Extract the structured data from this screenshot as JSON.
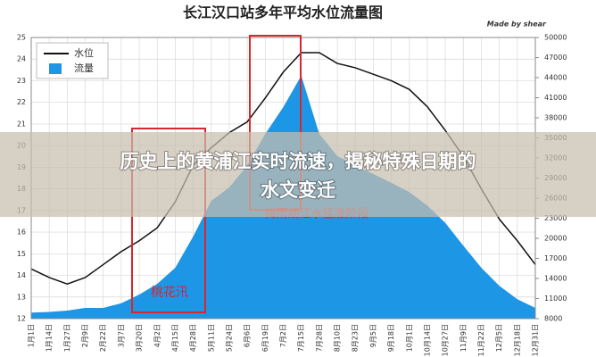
{
  "chart_data": {
    "type": "area-line",
    "title": "长江汉口站多年平均水位流量图",
    "credit": "Made by shear",
    "categories": [
      "1月1日",
      "1月14日",
      "1月27日",
      "2月9日",
      "2月22日",
      "3月7日",
      "3月20日",
      "4月2日",
      "4月15日",
      "4月28日",
      "5月11日",
      "5月24日",
      "6月6日",
      "6月19日",
      "7月2日",
      "7月15日",
      "7月28日",
      "8月10日",
      "8月23日",
      "9月5日",
      "9月18日",
      "10月1日",
      "10月14日",
      "10月27日",
      "11月9日",
      "11月22日",
      "12月5日",
      "12月18日",
      "12月31日"
    ],
    "series": [
      {
        "name": "流量",
        "kind": "area",
        "color": "#1e96e6",
        "axis": "y2",
        "values": [
          8900,
          9000,
          9200,
          9600,
          9600,
          10300,
          11600,
          13200,
          15600,
          20300,
          25600,
          27600,
          30900,
          35600,
          39600,
          44300,
          35600,
          32300,
          30900,
          29600,
          28300,
          26900,
          24900,
          22300,
          18900,
          15600,
          12900,
          10900,
          9600
        ]
      },
      {
        "name": "水位",
        "kind": "line",
        "color": "#111111",
        "axis": "y",
        "values": [
          14.3,
          13.9,
          13.6,
          13.9,
          14.5,
          15.1,
          15.6,
          16.2,
          17.4,
          19.1,
          19.9,
          20.6,
          21.1,
          22.2,
          23.4,
          24.3,
          24.3,
          23.8,
          23.6,
          23.3,
          23.0,
          22.6,
          21.8,
          20.7,
          19.5,
          18.0,
          16.6,
          15.6,
          14.5
        ]
      }
    ],
    "ylim": [
      12,
      25
    ],
    "yticks": [
      12,
      13,
      14,
      15,
      16,
      17,
      18,
      19,
      20,
      21,
      22,
      23,
      24,
      25
    ],
    "y2lim": [
      8000,
      50000
    ],
    "y2ticks": [
      8000,
      11000,
      14000,
      17000,
      20000,
      23000,
      26000,
      29000,
      32000,
      35000,
      38000,
      41000,
      44000,
      47000,
      50000
    ],
    "grid": true,
    "legend": "top-left",
    "annotations": [
      "桃花汛",
      "梅雨期江水猛涨阶段"
    ]
  },
  "banner": {
    "lines": [
      "历史上的黄浦江实时流速，揭秘特殊日期的",
      "水文变迁"
    ]
  }
}
